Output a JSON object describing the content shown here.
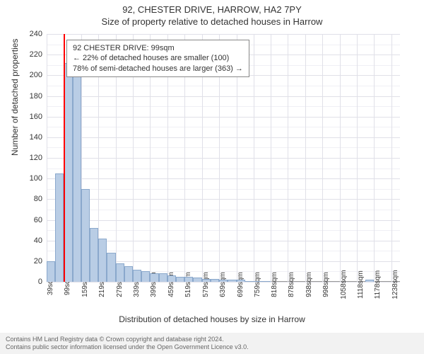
{
  "title_line1": "92, CHESTER DRIVE, HARROW, HA2 7PY",
  "title_line2": "Size of property relative to detached houses in Harrow",
  "y_axis_label": "Number of detached properties",
  "x_axis_label": "Distribution of detached houses by size in Harrow",
  "chart": {
    "type": "histogram",
    "background_color": "#ffffff",
    "grid_color_major": "#e0e0e8",
    "grid_color_minor": "#f0f0f5",
    "axis_color": "#999999",
    "xlim": [
      39,
      1268
    ],
    "ylim": [
      0,
      240
    ],
    "y_ticks": [
      0,
      20,
      40,
      60,
      80,
      100,
      120,
      140,
      160,
      180,
      200,
      220,
      240
    ],
    "x_tick_labels": [
      "39sqm",
      "99sqm",
      "159sqm",
      "219sqm",
      "279sqm",
      "339sqm",
      "399sqm",
      "459sqm",
      "519sqm",
      "579sqm",
      "639sqm",
      "699sqm",
      "759sqm",
      "818sqm",
      "878sqm",
      "938sqm",
      "998sqm",
      "1058sqm",
      "1118sqm",
      "1178sqm",
      "1238sqm"
    ],
    "x_tick_positions": [
      39,
      99,
      159,
      219,
      279,
      339,
      399,
      459,
      519,
      579,
      639,
      699,
      759,
      818,
      878,
      938,
      998,
      1058,
      1118,
      1178,
      1238
    ],
    "bar_color": "#b9cde5",
    "bar_border_color": "#8aa8cc",
    "bin_width": 30,
    "bars": [
      {
        "x": 39,
        "y": 20
      },
      {
        "x": 69,
        "y": 105
      },
      {
        "x": 99,
        "y": 212
      },
      {
        "x": 129,
        "y": 203
      },
      {
        "x": 159,
        "y": 90
      },
      {
        "x": 189,
        "y": 52
      },
      {
        "x": 219,
        "y": 42
      },
      {
        "x": 249,
        "y": 28
      },
      {
        "x": 279,
        "y": 18
      },
      {
        "x": 309,
        "y": 15
      },
      {
        "x": 339,
        "y": 12
      },
      {
        "x": 369,
        "y": 10
      },
      {
        "x": 399,
        "y": 8
      },
      {
        "x": 429,
        "y": 8
      },
      {
        "x": 459,
        "y": 6
      },
      {
        "x": 489,
        "y": 5
      },
      {
        "x": 519,
        "y": 5
      },
      {
        "x": 549,
        "y": 4
      },
      {
        "x": 579,
        "y": 3
      },
      {
        "x": 609,
        "y": 3
      },
      {
        "x": 639,
        "y": 2
      },
      {
        "x": 669,
        "y": 2
      },
      {
        "x": 699,
        "y": 2
      },
      {
        "x": 729,
        "y": 1
      },
      {
        "x": 759,
        "y": 1
      },
      {
        "x": 789,
        "y": 1
      },
      {
        "x": 1148,
        "y": 2
      }
    ],
    "marker": {
      "x": 99,
      "color": "#ff0000",
      "width": 2
    }
  },
  "info_box": {
    "line1": "92 CHESTER DRIVE: 99sqm",
    "line2": "← 22% of detached houses are smaller (100)",
    "line3": "78% of semi-detached houses are larger (363) →",
    "border_color": "#888888",
    "background_color": "#ffffff",
    "fontsize": 11
  },
  "footer": {
    "line1": "Contains HM Land Registry data © Crown copyright and database right 2024.",
    "line2": "Contains public sector information licensed under the Open Government Licence v3.0.",
    "background_color": "#f2f2f2"
  }
}
